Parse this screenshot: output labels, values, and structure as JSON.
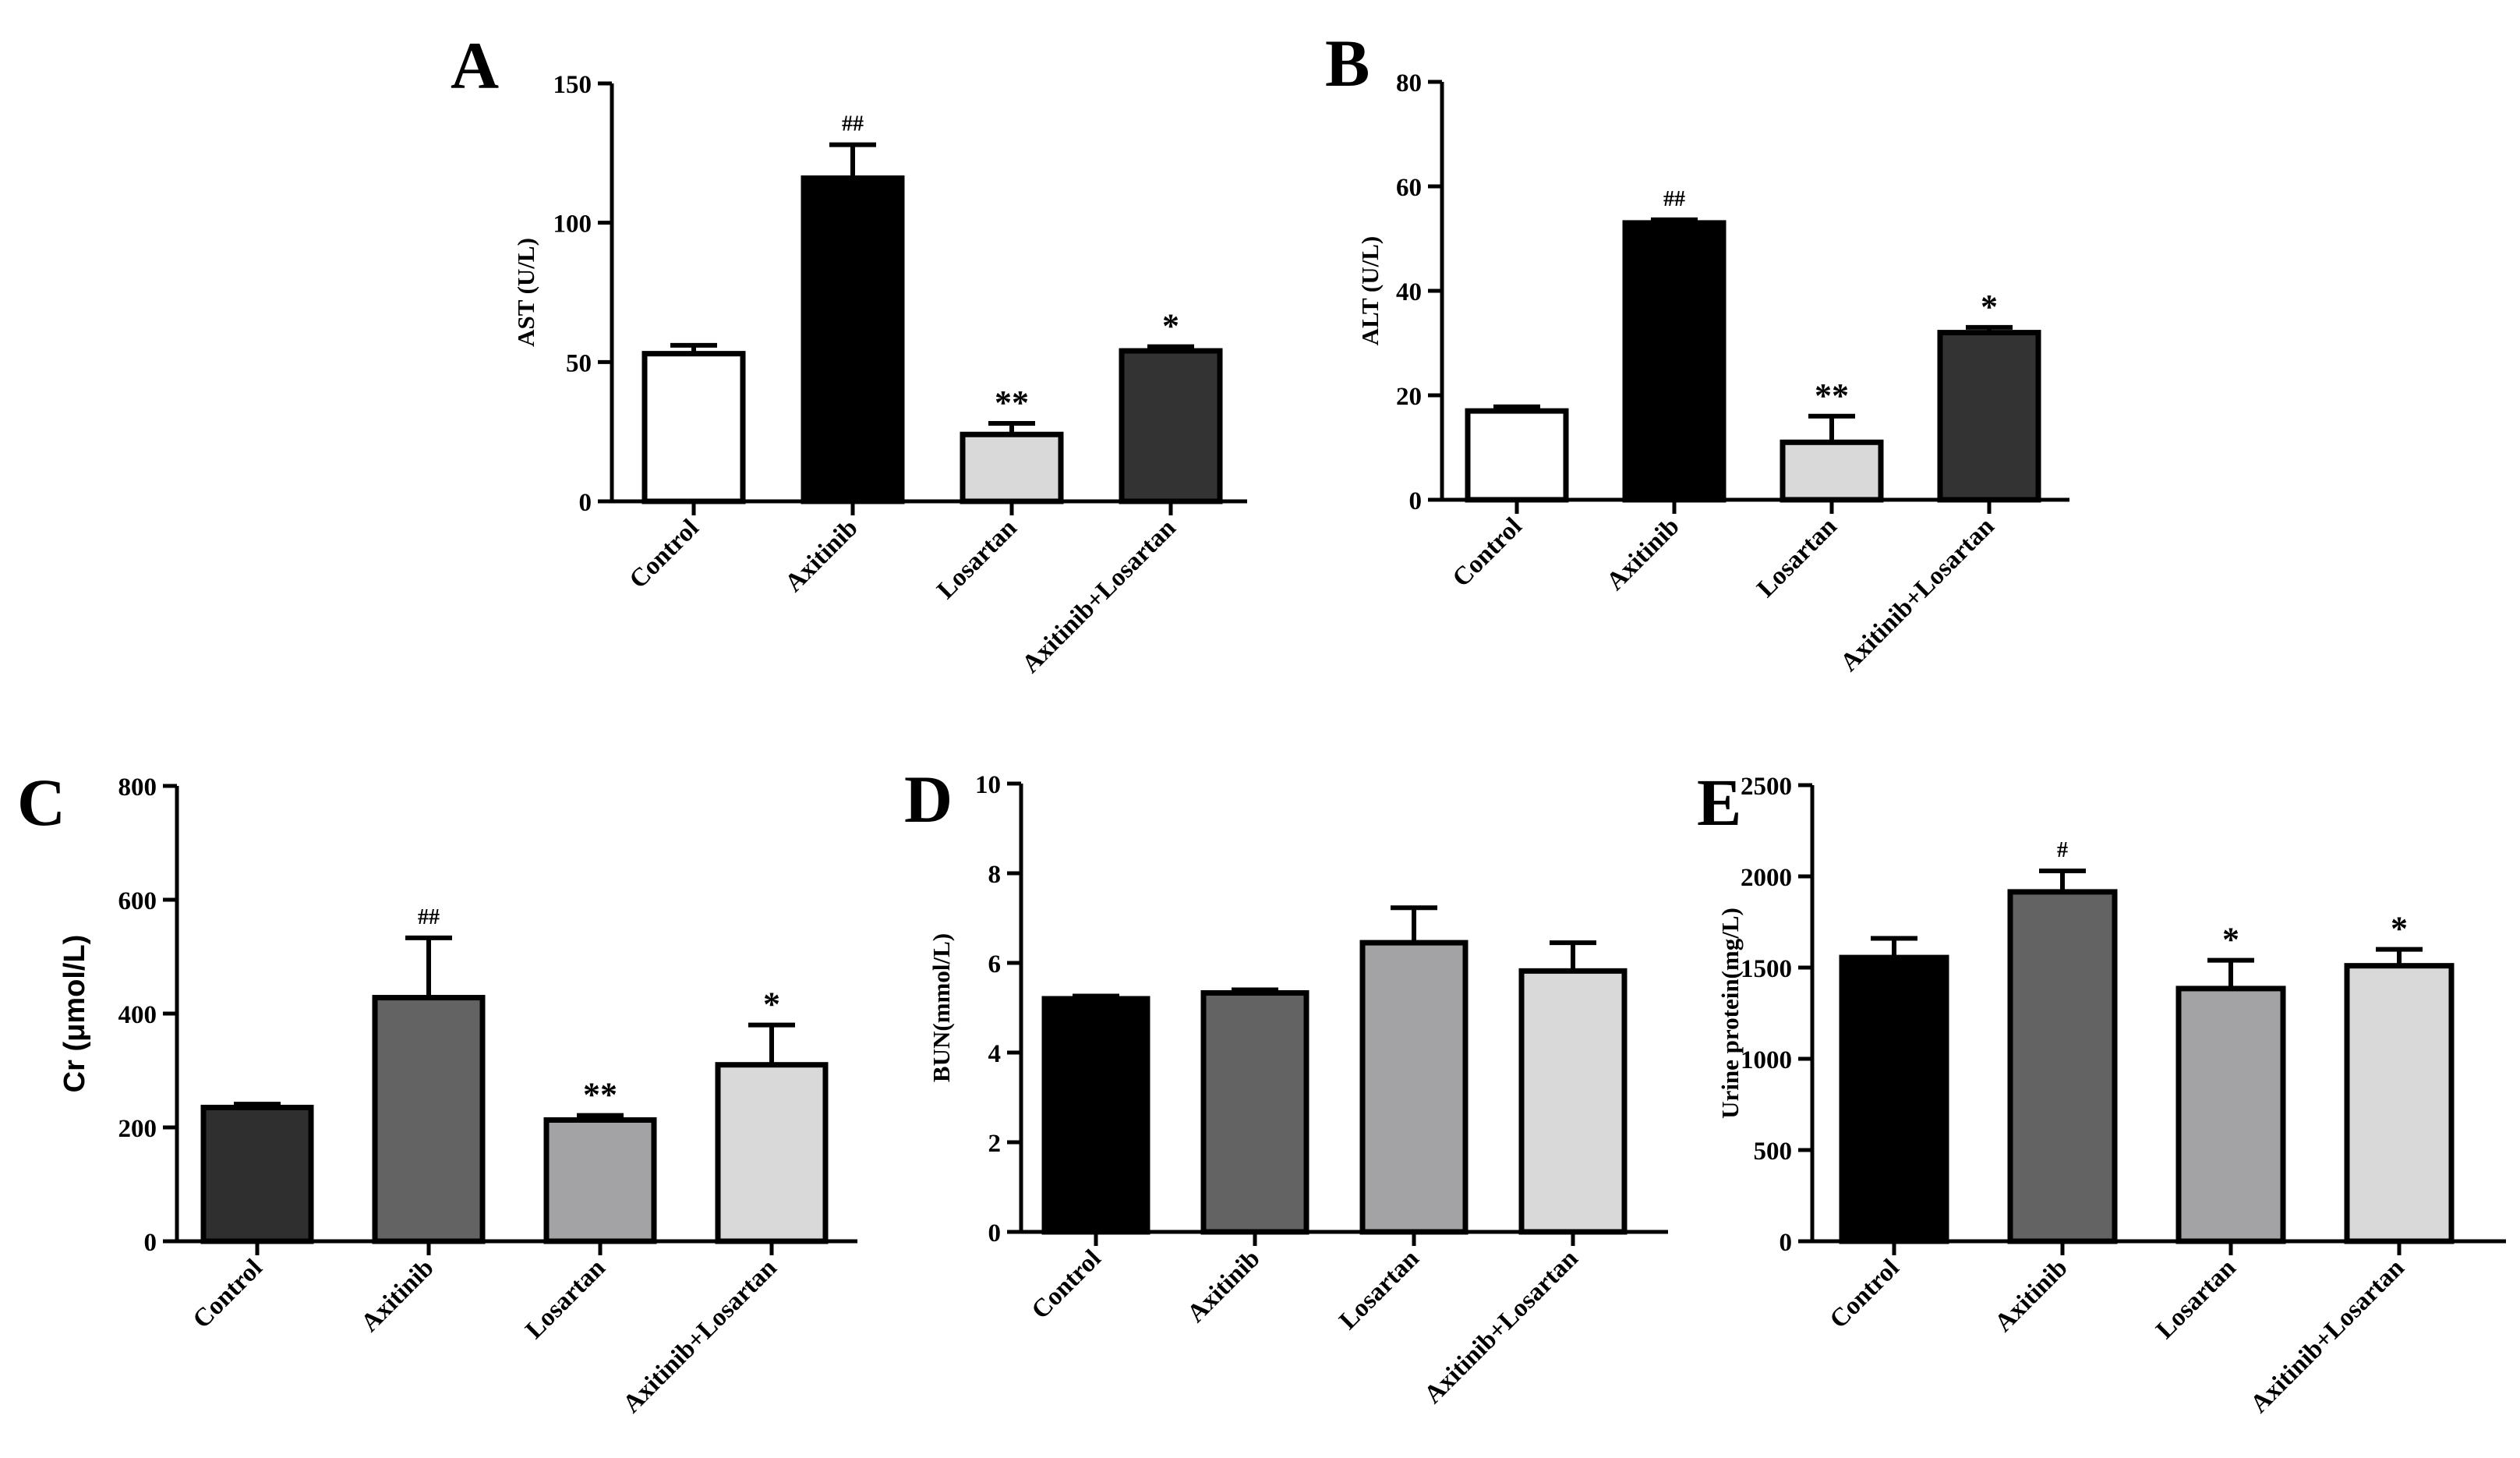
{
  "chart_data": [
    {
      "panel": "A",
      "type": "bar",
      "ylabel": "AST (U/L)",
      "categories": [
        "Control",
        "Axitinib",
        "Losartan",
        "Axitinib+Losartan"
      ],
      "values": [
        53,
        116,
        24,
        54
      ],
      "errors": [
        3,
        12,
        4,
        1.5
      ],
      "annotations": [
        "",
        "##",
        "**",
        "*"
      ],
      "colors": [
        "#ffffff",
        "#000000",
        "#d9d9d9",
        "#333333"
      ],
      "ylim": [
        0,
        150
      ],
      "yticks": [
        0,
        50,
        100,
        150
      ]
    },
    {
      "panel": "B",
      "type": "bar",
      "ylabel": "ALT (U/L)",
      "categories": [
        "Control",
        "Axitinib",
        "Losartan",
        "Axitinib+Losartan"
      ],
      "values": [
        17,
        53,
        11,
        32
      ],
      "errors": [
        0.8,
        0.6,
        5,
        1
      ],
      "annotations": [
        "",
        "##",
        "**",
        "*"
      ],
      "colors": [
        "#ffffff",
        "#000000",
        "#d9d9d9",
        "#333333"
      ],
      "ylim": [
        0,
        80
      ],
      "yticks": [
        0,
        20,
        40,
        60,
        80
      ]
    },
    {
      "panel": "C",
      "type": "bar",
      "ylabel": "Cr (μmol/L)",
      "categories": [
        "Control",
        "Axitinib",
        "Losartan",
        "Axitinib+Losartan"
      ],
      "values": [
        235,
        428,
        213,
        310
      ],
      "errors": [
        6,
        105,
        8,
        70
      ],
      "annotations": [
        "",
        "##",
        "**",
        "*"
      ],
      "colors": [
        "#2f2f2f",
        "#636363",
        "#a3a3a5",
        "#d9d9d9"
      ],
      "ylim": [
        0,
        800
      ],
      "yticks": [
        0,
        200,
        400,
        600,
        800
      ]
    },
    {
      "panel": "D",
      "type": "bar",
      "ylabel": "BUN(mmol/L)",
      "categories": [
        "Control",
        "Axitinib",
        "Losartan",
        "Axitinib+Losartan"
      ],
      "values": [
        5.2,
        5.33,
        6.45,
        5.82
      ],
      "errors": [
        0.06,
        0.07,
        0.78,
        0.63
      ],
      "annotations": [
        "",
        "",
        "",
        ""
      ],
      "colors": [
        "#000000",
        "#636363",
        "#a3a3a5",
        "#d9d9d9"
      ],
      "ylim": [
        0,
        10
      ],
      "yticks": [
        0,
        2,
        4,
        6,
        8,
        10
      ]
    },
    {
      "panel": "E",
      "type": "bar",
      "ylabel": "Urine protein(mg/L)",
      "categories": [
        "Control",
        "Axitinib",
        "Losartan",
        "Axitinib+Losartan"
      ],
      "values": [
        1555,
        1915,
        1385,
        1510
      ],
      "errors": [
        105,
        115,
        155,
        90
      ],
      "annotations": [
        "",
        "#",
        "*",
        "*"
      ],
      "colors": [
        "#000000",
        "#636363",
        "#a3a3a5",
        "#d9d9d9"
      ],
      "ylim": [
        0,
        2500
      ],
      "yticks": [
        0,
        500,
        1000,
        1500,
        2000,
        2500
      ]
    }
  ]
}
